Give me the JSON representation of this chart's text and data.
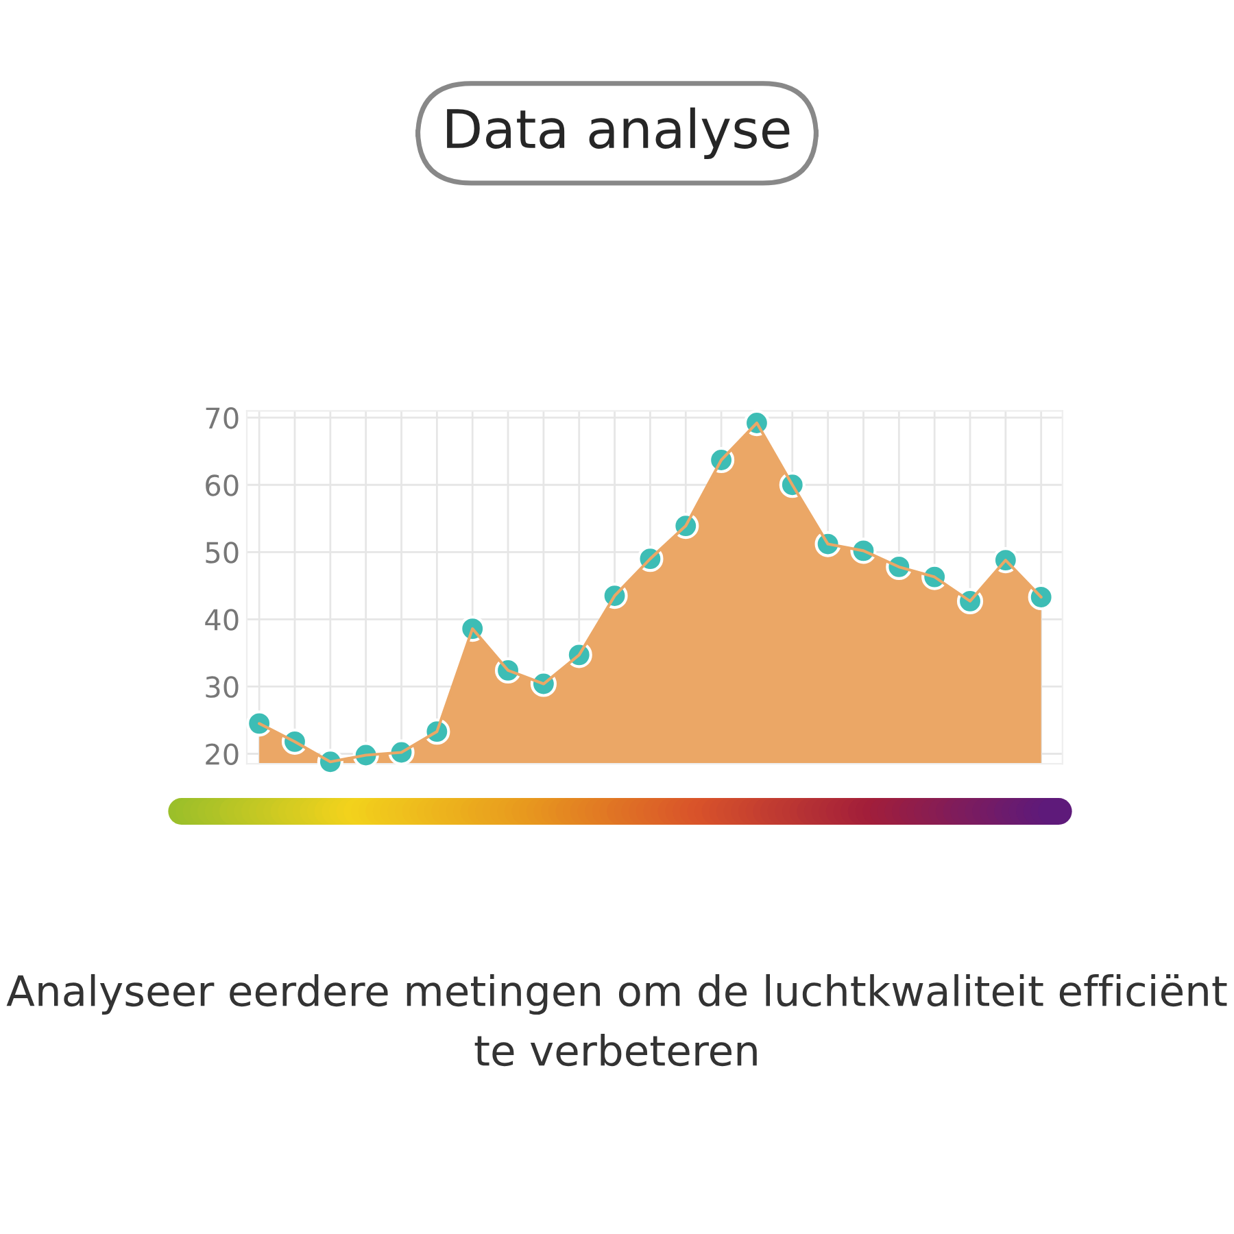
{
  "chart_data": {
    "type": "area",
    "title": "Data analyse",
    "annotations": [
      "Analyseer eerdere metingen om de luchtkwaliteit efficiënt te verbeteren"
    ],
    "categories": [
      null,
      null,
      null,
      null,
      null,
      null,
      null,
      null,
      null,
      null,
      null,
      null,
      null,
      null,
      null,
      null,
      null,
      null,
      null,
      null,
      null,
      null,
      null
    ],
    "series": [
      {
        "color": "#eba766",
        "values": [
          24.5,
          21.8,
          18.8,
          19.8,
          20.2,
          23.3,
          38.6,
          32.4,
          30.4,
          34.7,
          43.5,
          49,
          53.9,
          63.7,
          69.2,
          60,
          51.2,
          50.2,
          47.8,
          46.3,
          42.7,
          48.8,
          43.3
        ]
      },
      {
        "type": "scatter",
        "color": "#3dbdb5",
        "marker": "circle",
        "values": [
          24.5,
          21.8,
          18.8,
          19.8,
          20.2,
          23.3,
          38.6,
          32.4,
          30.4,
          34.7,
          43.5,
          49,
          53.9,
          63.7,
          69.2,
          60,
          51.2,
          50.2,
          47.8,
          46.3,
          42.7,
          48.8,
          43.3
        ]
      }
    ],
    "ylim": [
      18.5,
      71
    ],
    "yticks": [
      20,
      30,
      40,
      50,
      60,
      70
    ],
    "grid": true,
    "tick_labels": "y"
  }
}
